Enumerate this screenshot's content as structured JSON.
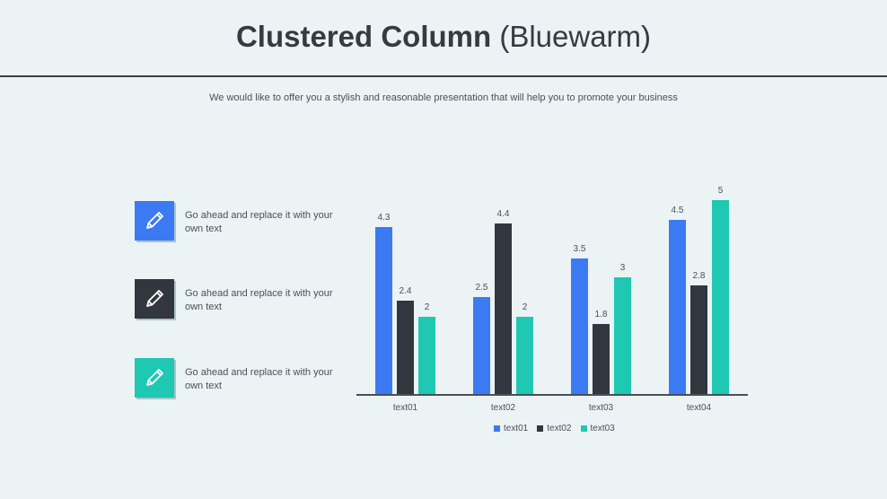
{
  "header": {
    "title_bold": "Clustered Column",
    "title_light": "(Bluewarm)",
    "subtitle": "We would like to offer you a stylish and reasonable presentation that will help you to promote your business"
  },
  "side_items": [
    {
      "icon": "pencil-icon",
      "color": "#3b7af2",
      "text": "Go ahead and replace it with your own text"
    },
    {
      "icon": "pencil-icon",
      "color": "#32363f",
      "text": "Go ahead and replace it with your own text"
    },
    {
      "icon": "pencil-icon",
      "color": "#1fc8b3",
      "text": "Go ahead and replace it with your own text"
    }
  ],
  "colors": {
    "text01": "#3b7af2",
    "text02": "#32363f",
    "text03": "#1fc8b3"
  },
  "chart_data": {
    "type": "bar",
    "title": "",
    "xlabel": "",
    "ylabel": "",
    "categories": [
      "text01",
      "text02",
      "text03",
      "text04"
    ],
    "series": [
      {
        "name": "text01",
        "color": "#3b7af2",
        "values": [
          4.3,
          2.5,
          3.5,
          4.5
        ]
      },
      {
        "name": "text02",
        "color": "#32363f",
        "values": [
          2.4,
          4.4,
          1.8,
          2.8
        ]
      },
      {
        "name": "text03",
        "color": "#1fc8b3",
        "values": [
          2,
          2,
          3,
          5
        ]
      }
    ],
    "ylim": [
      0,
      5
    ],
    "grid": false,
    "data_labels": true,
    "legend_position": "bottom"
  }
}
